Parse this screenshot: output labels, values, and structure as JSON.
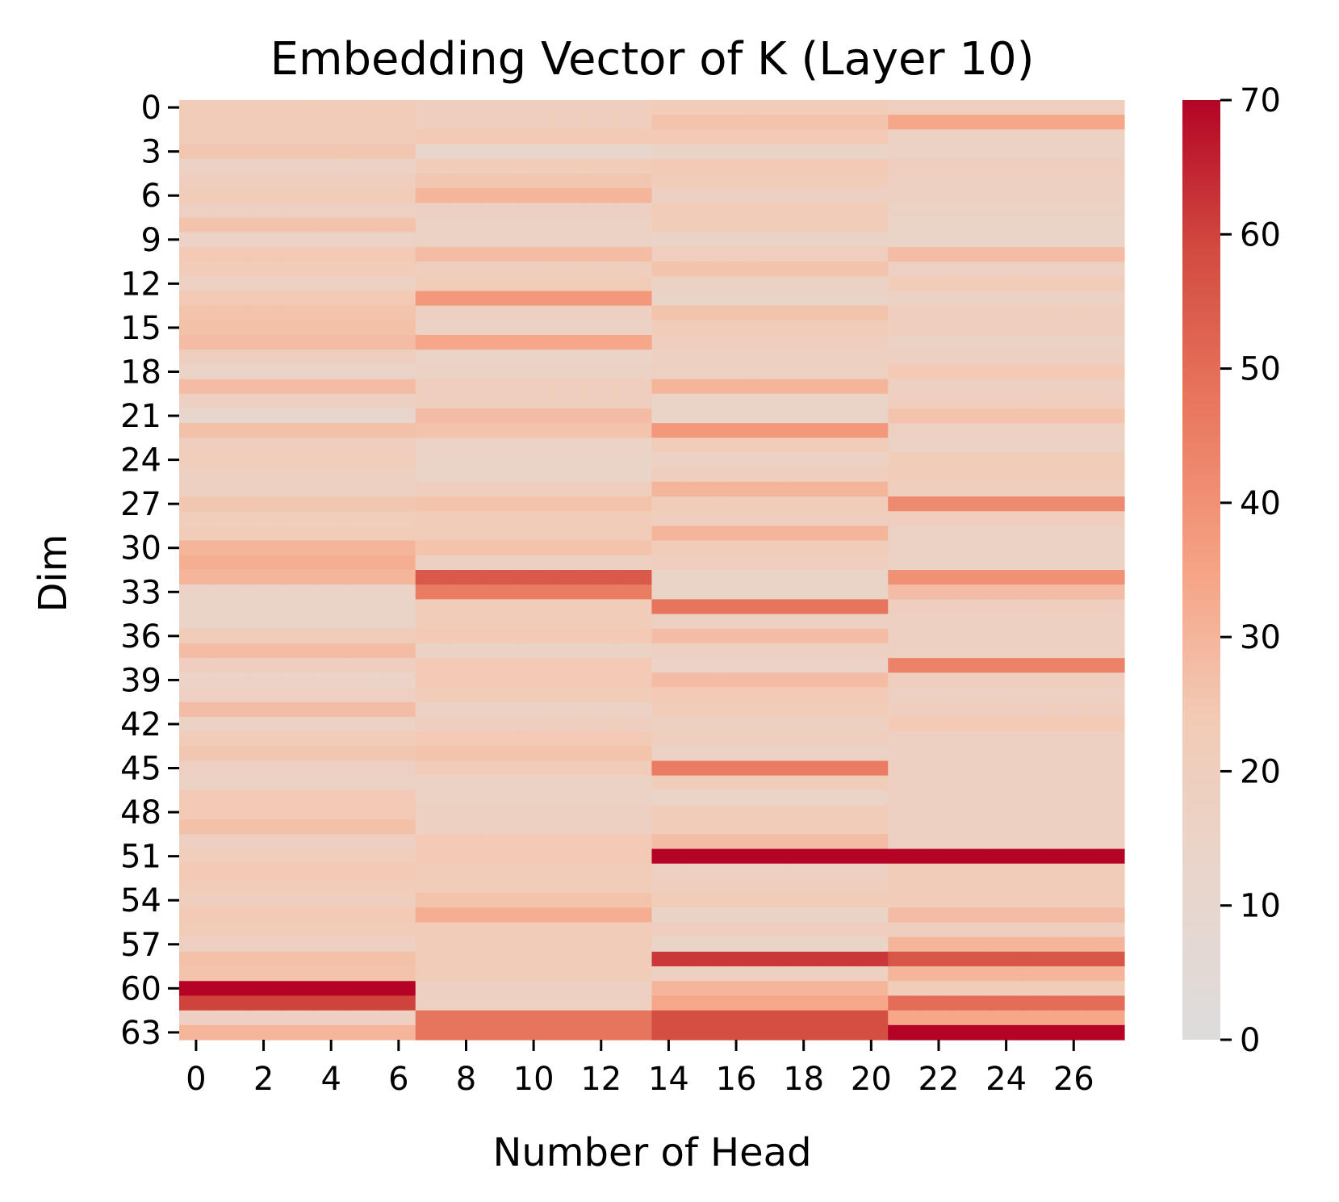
{
  "chart_data": {
    "type": "heatmap",
    "title": "Embedding Vector of K (Layer 10)",
    "xlabel": "Number of Head",
    "ylabel": "Dim",
    "n_heads": 28,
    "n_dims": 64,
    "x_ticks": [
      0,
      2,
      4,
      6,
      8,
      10,
      12,
      14,
      16,
      18,
      20,
      22,
      24,
      26
    ],
    "y_ticks": [
      0,
      3,
      6,
      9,
      12,
      15,
      18,
      21,
      24,
      27,
      30,
      33,
      36,
      39,
      42,
      45,
      48,
      51,
      54,
      57,
      60,
      63
    ],
    "colorbar": {
      "min": 0,
      "max": 70,
      "ticks": [
        0,
        10,
        20,
        30,
        40,
        50,
        60,
        70
      ],
      "colors": [
        "#dddcdc",
        "#f2cbb6",
        "#f6a385",
        "#e16751",
        "#b40426"
      ]
    },
    "group_size": 7,
    "groups": [
      {
        "heads": "0-6",
        "values": [
          22,
          22,
          22,
          25,
          16,
          20,
          22,
          18,
          26,
          15,
          24,
          22,
          17,
          24,
          26,
          27,
          28,
          19,
          14,
          28,
          18,
          12,
          27,
          20,
          21,
          18,
          18,
          25,
          21,
          22,
          30,
          32,
          30,
          15,
          14,
          14,
          22,
          28,
          20,
          15,
          18,
          28,
          16,
          22,
          25,
          18,
          16,
          24,
          24,
          27,
          18,
          21,
          24,
          22,
          20,
          24,
          23,
          18,
          27,
          26,
          70,
          60,
          18,
          30
        ]
      },
      {
        "heads": "7-13",
        "values": [
          20,
          20,
          24,
          12,
          22,
          25,
          30,
          18,
          16,
          16,
          28,
          20,
          22,
          38,
          18,
          16,
          34,
          14,
          16,
          20,
          20,
          28,
          26,
          15,
          14,
          14,
          20,
          26,
          22,
          22,
          26,
          18,
          55,
          46,
          22,
          22,
          24,
          16,
          24,
          24,
          22,
          16,
          20,
          24,
          26,
          22,
          16,
          16,
          18,
          18,
          24,
          24,
          22,
          22,
          26,
          32,
          22,
          22,
          22,
          22,
          18,
          18,
          48,
          48
        ]
      },
      {
        "heads": "14-20",
        "values": [
          22,
          26,
          24,
          14,
          24,
          22,
          18,
          22,
          22,
          14,
          20,
          26,
          16,
          14,
          26,
          22,
          20,
          18,
          18,
          30,
          14,
          14,
          38,
          22,
          16,
          20,
          30,
          22,
          20,
          30,
          22,
          20,
          14,
          14,
          48,
          18,
          28,
          18,
          15,
          28,
          24,
          22,
          18,
          20,
          16,
          46,
          22,
          14,
          22,
          22,
          28,
          70,
          18,
          20,
          22,
          14,
          20,
          14,
          62,
          18,
          30,
          34,
          58,
          58
        ]
      },
      {
        "heads": "21-27",
        "values": [
          20,
          34,
          16,
          16,
          20,
          18,
          18,
          16,
          14,
          14,
          28,
          18,
          22,
          16,
          20,
          20,
          16,
          18,
          24,
          18,
          20,
          26,
          18,
          16,
          22,
          22,
          20,
          42,
          20,
          16,
          16,
          16,
          40,
          28,
          20,
          18,
          18,
          18,
          44,
          20,
          18,
          20,
          24,
          18,
          18,
          18,
          18,
          18,
          18,
          18,
          18,
          70,
          22,
          22,
          22,
          28,
          20,
          30,
          56,
          30,
          22,
          50,
          34,
          70
        ]
      }
    ]
  }
}
